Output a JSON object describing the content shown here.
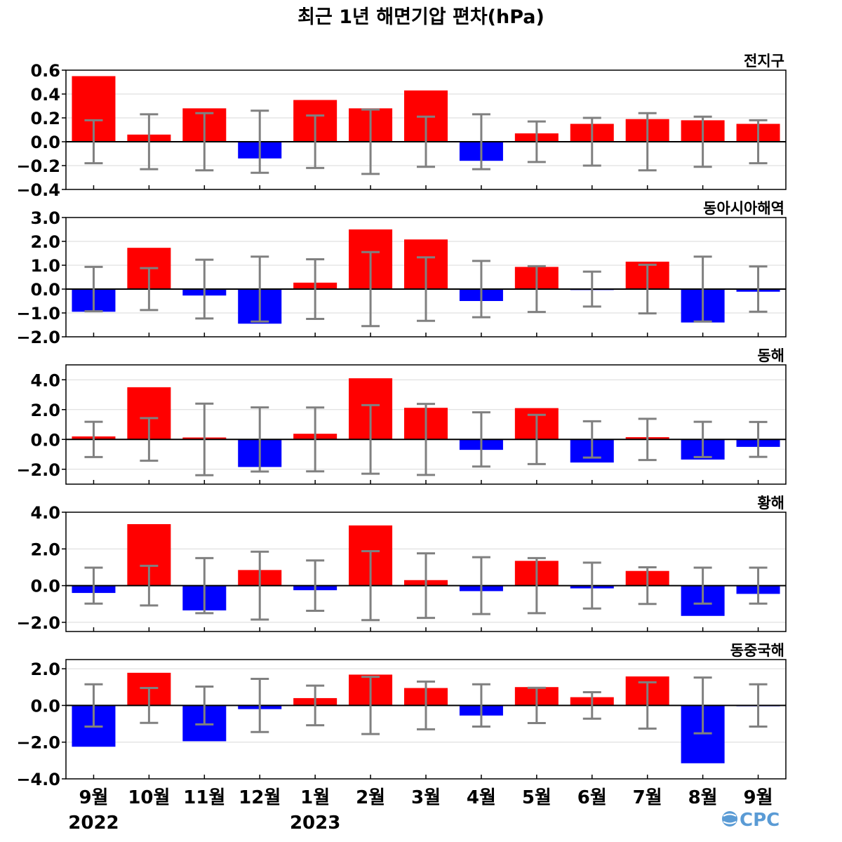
{
  "chart_data": {
    "type": "bar",
    "title": "최근 1년 해면기압 편차(hPa)",
    "categories": [
      "9월",
      "10월",
      "11월",
      "12월",
      "1월",
      "2월",
      "3월",
      "4월",
      "5월",
      "6월",
      "7월",
      "8월",
      "9월"
    ],
    "years": [
      {
        "label": "2022",
        "category_index": 0
      },
      {
        "label": "2023",
        "category_index": 4
      }
    ],
    "colors": {
      "positive": "#ff0000",
      "negative": "#0000ff",
      "error_bar": "#808080",
      "grid": "#d9d9d9",
      "zero_line": "#000000"
    },
    "grid": true,
    "panels": [
      {
        "region": "전지구",
        "ylim": [
          -0.4,
          0.6
        ],
        "yticks": [
          -0.4,
          -0.2,
          0.0,
          0.2,
          0.4,
          0.6
        ],
        "ytick_labels": [
          "−0.4",
          "−0.2",
          "0.0",
          "0.2",
          "0.4",
          "0.6"
        ],
        "values": [
          0.55,
          0.06,
          0.28,
          -0.14,
          0.35,
          0.28,
          0.43,
          -0.16,
          0.07,
          0.15,
          0.19,
          0.18,
          0.15
        ],
        "error": [
          0.18,
          0.23,
          0.24,
          0.26,
          0.22,
          0.27,
          0.21,
          0.23,
          0.17,
          0.2,
          0.24,
          0.21,
          0.18
        ]
      },
      {
        "region": "동아시아해역",
        "ylim": [
          -2.0,
          3.0
        ],
        "yticks": [
          -2.0,
          -1.0,
          0.0,
          1.0,
          2.0,
          3.0
        ],
        "ytick_labels": [
          "−2.0",
          "−1.0",
          "0.0",
          "1.0",
          "2.0",
          "3.0"
        ],
        "values": [
          -0.95,
          1.73,
          -0.27,
          -1.45,
          0.27,
          2.5,
          2.08,
          -0.5,
          0.93,
          -0.04,
          1.15,
          -1.4,
          -0.11
        ],
        "error": [
          0.93,
          0.88,
          1.23,
          1.36,
          1.25,
          1.55,
          1.33,
          1.18,
          0.96,
          0.73,
          1.02,
          1.36,
          0.95
        ]
      },
      {
        "region": "동해",
        "ylim": [
          -3.0,
          5.0
        ],
        "yticks": [
          -2.0,
          0.0,
          2.0,
          4.0
        ],
        "ytick_labels": [
          "−2.0",
          "0.0",
          "2.0",
          "4.0"
        ],
        "values": [
          0.2,
          3.5,
          0.13,
          -1.85,
          0.38,
          4.1,
          2.12,
          -0.7,
          2.1,
          -1.55,
          0.15,
          -1.35,
          -0.5
        ],
        "error": [
          1.18,
          1.43,
          2.4,
          2.15,
          2.14,
          2.3,
          2.38,
          1.82,
          1.65,
          1.22,
          1.38,
          1.18,
          1.17
        ]
      },
      {
        "region": "황해",
        "ylim": [
          -2.5,
          4.0
        ],
        "yticks": [
          -2.0,
          0.0,
          2.0,
          4.0
        ],
        "ytick_labels": [
          "−2.0",
          "0.0",
          "2.0",
          "4.0"
        ],
        "values": [
          -0.4,
          3.35,
          -1.35,
          0.85,
          -0.25,
          3.28,
          0.3,
          -0.3,
          1.35,
          -0.15,
          0.8,
          -1.65,
          -0.45
        ],
        "error": [
          0.98,
          1.08,
          1.5,
          1.85,
          1.37,
          1.88,
          1.76,
          1.55,
          1.5,
          1.25,
          1.0,
          0.98,
          0.98
        ]
      },
      {
        "region": "동중국해",
        "ylim": [
          -4.0,
          2.5
        ],
        "yticks": [
          -4.0,
          -2.0,
          0.0,
          2.0
        ],
        "ytick_labels": [
          "−4.0",
          "−2.0",
          "0.0",
          "2.0"
        ],
        "values": [
          -2.25,
          1.78,
          -1.95,
          -0.2,
          0.4,
          1.68,
          0.95,
          -0.55,
          1.0,
          0.45,
          1.58,
          -3.15,
          -0.04
        ],
        "error": [
          1.15,
          0.95,
          1.03,
          1.45,
          1.08,
          1.56,
          1.3,
          1.15,
          0.96,
          0.72,
          1.26,
          1.52,
          1.15
        ]
      }
    ]
  },
  "logo": {
    "text": "CPC"
  }
}
